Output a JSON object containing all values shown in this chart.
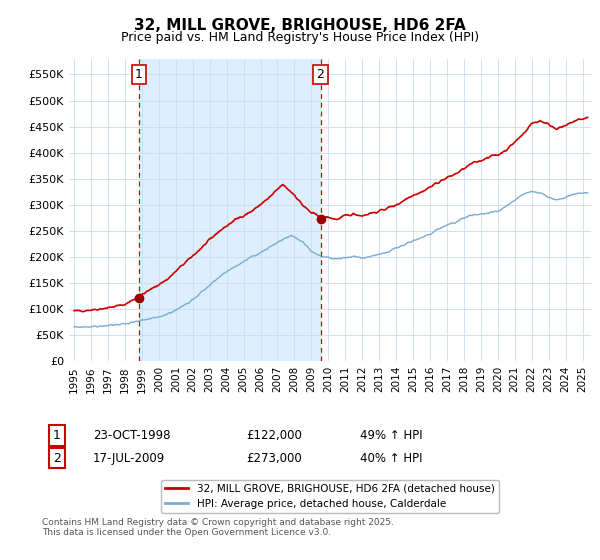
{
  "title": "32, MILL GROVE, BRIGHOUSE, HD6 2FA",
  "subtitle": "Price paid vs. HM Land Registry's House Price Index (HPI)",
  "title_fontsize": 11,
  "subtitle_fontsize": 9,
  "xlim_start": 1994.7,
  "xlim_end": 2025.5,
  "ylim_min": 0,
  "ylim_max": 580000,
  "yticks": [
    0,
    50000,
    100000,
    150000,
    200000,
    250000,
    300000,
    350000,
    400000,
    450000,
    500000,
    550000
  ],
  "ytick_labels": [
    "£0",
    "£50K",
    "£100K",
    "£150K",
    "£200K",
    "£250K",
    "£300K",
    "£350K",
    "£400K",
    "£450K",
    "£500K",
    "£550K"
  ],
  "xticks": [
    1995,
    1996,
    1997,
    1998,
    1999,
    2000,
    2001,
    2002,
    2003,
    2004,
    2005,
    2006,
    2007,
    2008,
    2009,
    2010,
    2011,
    2012,
    2013,
    2014,
    2015,
    2016,
    2017,
    2018,
    2019,
    2020,
    2021,
    2022,
    2023,
    2024,
    2025
  ],
  "line_color_red": "#cc0000",
  "line_color_blue": "#7aadcf",
  "marker_color_red": "#990000",
  "vline_color": "#cc0000",
  "shade_color": "#ddeeff",
  "background_color": "#ffffff",
  "grid_color": "#ccddee",
  "legend_label_red": "32, MILL GROVE, BRIGHOUSE, HD6 2FA (detached house)",
  "legend_label_blue": "HPI: Average price, detached house, Calderdale",
  "transaction1_date": "23-OCT-1998",
  "transaction1_price": 122000,
  "transaction1_hpi": "49% ↑ HPI",
  "transaction1_year": 1998.81,
  "transaction2_date": "17-JUL-2009",
  "transaction2_price": 273000,
  "transaction2_hpi": "40% ↑ HPI",
  "transaction2_year": 2009.54,
  "copyright_text": "Contains HM Land Registry data © Crown copyright and database right 2025.\nThis data is licensed under the Open Government Licence v3.0."
}
